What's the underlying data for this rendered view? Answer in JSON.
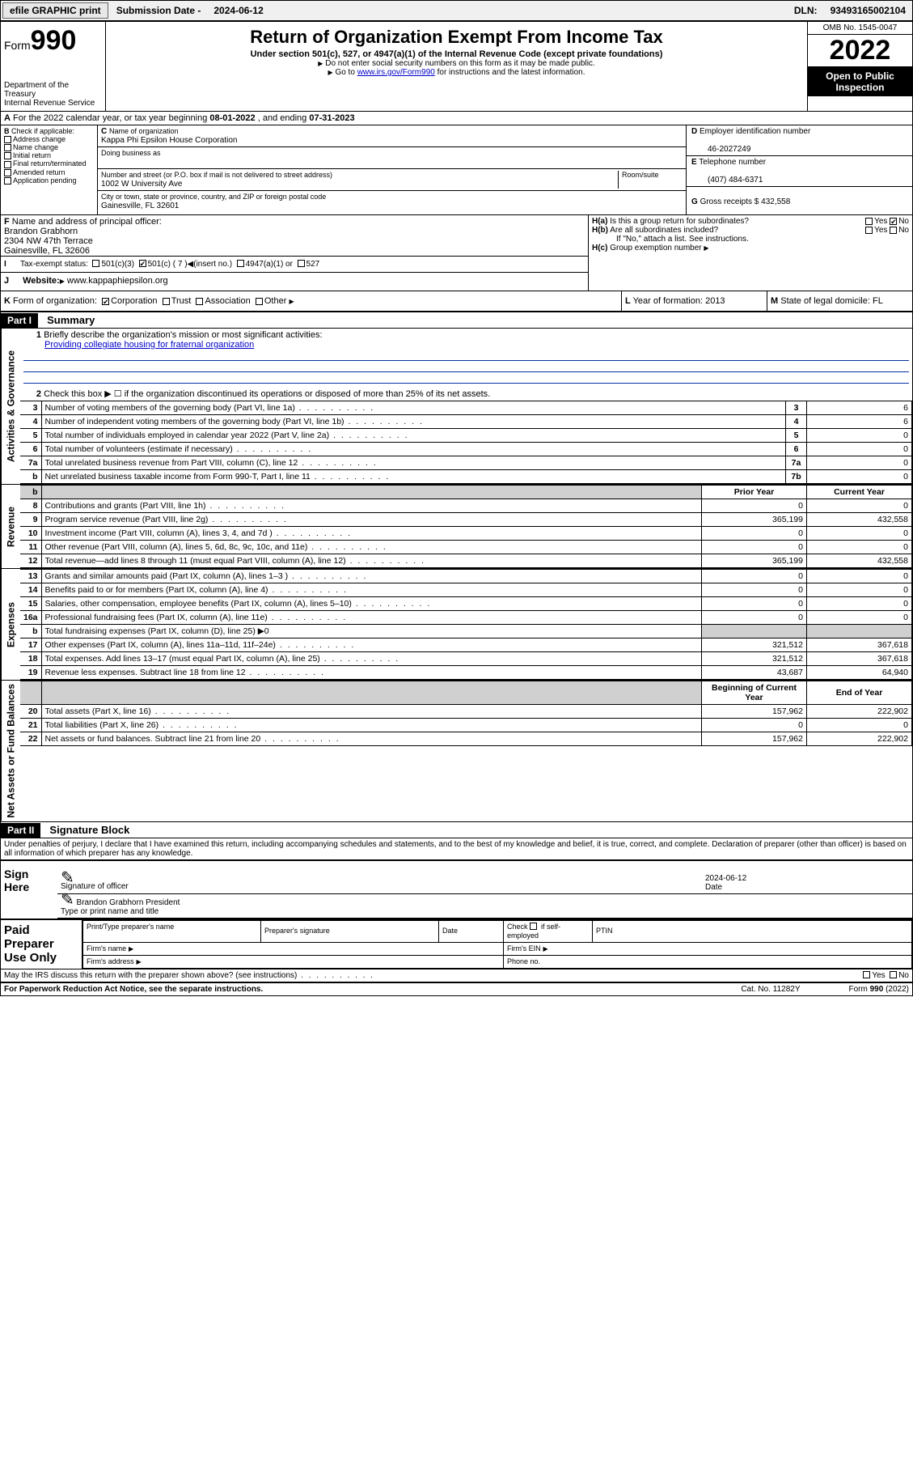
{
  "topbar": {
    "efile": "efile GRAPHIC print",
    "subdate_label": "Submission Date - ",
    "subdate": "2024-06-12",
    "dln_label": "DLN: ",
    "dln": "93493165002104"
  },
  "header": {
    "form_word": "Form",
    "form_no": "990",
    "dept1": "Department of the Treasury",
    "dept2": "Internal Revenue Service",
    "title": "Return of Organization Exempt From Income Tax",
    "sub": "Under section 501(c), 527, or 4947(a)(1) of the Internal Revenue Code (except private foundations)",
    "line1": "Do not enter social security numbers on this form as it may be made public.",
    "line2a": "Go to ",
    "line2link": "www.irs.gov/Form990",
    "line2b": " for instructions and the latest information.",
    "omb": "OMB No. 1545-0047",
    "year": "2022",
    "open": "Open to Public Inspection"
  },
  "A": {
    "label": "A",
    "text1": "For the 2022 calendar year, or tax year beginning ",
    "begin": "08-01-2022",
    "text2": " , and ending ",
    "end": "07-31-2023"
  },
  "B": {
    "label": "B",
    "check_if": "Check if applicable:",
    "opts": [
      "Address change",
      "Name change",
      "Initial return",
      "Final return/terminated",
      "Amended return",
      "Application pending"
    ]
  },
  "C": {
    "label": "C",
    "name_lbl": "Name of organization",
    "name": "Kappa Phi Epsilon House Corporation",
    "dba_lbl": "Doing business as",
    "dba": "",
    "street_lbl": "Number and street (or P.O. box if mail is not delivered to street address)",
    "room_lbl": "Room/suite",
    "street": "1002 W University Ave",
    "city_lbl": "City or town, state or province, country, and ZIP or foreign postal code",
    "city": "Gainesville, FL  32601"
  },
  "D": {
    "label": "D",
    "lbl": "Employer identification number",
    "val": "46-2027249"
  },
  "E": {
    "label": "E",
    "lbl": "Telephone number",
    "val": "(407) 484-6371"
  },
  "G": {
    "label": "G",
    "lbl": "Gross receipts $",
    "val": "432,558"
  },
  "F": {
    "label": "F",
    "lbl": "Name and address of principal officer:",
    "name": "Brandon Grabhorn",
    "addr1": "2304 NW 47th Terrace",
    "addr2": "Gainesville, FL  32606"
  },
  "H": {
    "a_lbl": "H(a)",
    "a_txt": "Is this a group return for subordinates?",
    "a_yes": "Yes",
    "a_no": "No",
    "b_lbl": "H(b)",
    "b_txt": "Are all subordinates included?",
    "b_note": "If \"No,\" attach a list. See instructions.",
    "c_lbl": "H(c)",
    "c_txt": "Group exemption number"
  },
  "I": {
    "label": "I",
    "lbl": "Tax-exempt status:",
    "o1": "501(c)(3)",
    "o2": "501(c) ( 7 )",
    "o2b": "(insert no.)",
    "o3": "4947(a)(1) or",
    "o4": "527"
  },
  "J": {
    "label": "J",
    "lbl": "Website:",
    "val": "www.kappaphiepsilon.org"
  },
  "K": {
    "label": "K",
    "lbl": "Form of organization:",
    "o1": "Corporation",
    "o2": "Trust",
    "o3": "Association",
    "o4": "Other"
  },
  "L": {
    "label": "L",
    "lbl": "Year of formation:",
    "val": "2013"
  },
  "M": {
    "label": "M",
    "lbl": "State of legal domicile:",
    "val": "FL"
  },
  "part1": {
    "label": "Part I",
    "title": "Summary",
    "l1": "Briefly describe the organization's mission or most significant activities:",
    "l1val": "Providing collegiate housing for fraternal organization",
    "l2": "Check this box ▶ ☐  if the organization discontinued its operations or disposed of more than 25% of its net assets.",
    "rows_gov": [
      {
        "n": "3",
        "d": "Number of voting members of the governing body (Part VI, line 1a)",
        "k": "3",
        "v": "6"
      },
      {
        "n": "4",
        "d": "Number of independent voting members of the governing body (Part VI, line 1b)",
        "k": "4",
        "v": "6"
      },
      {
        "n": "5",
        "d": "Total number of individuals employed in calendar year 2022 (Part V, line 2a)",
        "k": "5",
        "v": "0"
      },
      {
        "n": "6",
        "d": "Total number of volunteers (estimate if necessary)",
        "k": "6",
        "v": "0"
      },
      {
        "n": "7a",
        "d": "Total unrelated business revenue from Part VIII, column (C), line 12",
        "k": "7a",
        "v": "0"
      },
      {
        "n": "b",
        "d": "Net unrelated business taxable income from Form 990-T, Part I, line 11",
        "k": "7b",
        "v": "0"
      }
    ],
    "prior_hdr": "Prior Year",
    "curr_hdr": "Current Year",
    "rows_rev": [
      {
        "n": "8",
        "d": "Contributions and grants (Part VIII, line 1h)",
        "p": "0",
        "c": "0"
      },
      {
        "n": "9",
        "d": "Program service revenue (Part VIII, line 2g)",
        "p": "365,199",
        "c": "432,558"
      },
      {
        "n": "10",
        "d": "Investment income (Part VIII, column (A), lines 3, 4, and 7d )",
        "p": "0",
        "c": "0"
      },
      {
        "n": "11",
        "d": "Other revenue (Part VIII, column (A), lines 5, 6d, 8c, 9c, 10c, and 11e)",
        "p": "0",
        "c": "0"
      },
      {
        "n": "12",
        "d": "Total revenue—add lines 8 through 11 (must equal Part VIII, column (A), line 12)",
        "p": "365,199",
        "c": "432,558"
      }
    ],
    "rows_exp": [
      {
        "n": "13",
        "d": "Grants and similar amounts paid (Part IX, column (A), lines 1–3 )",
        "p": "0",
        "c": "0"
      },
      {
        "n": "14",
        "d": "Benefits paid to or for members (Part IX, column (A), line 4)",
        "p": "0",
        "c": "0"
      },
      {
        "n": "15",
        "d": "Salaries, other compensation, employee benefits (Part IX, column (A), lines 5–10)",
        "p": "0",
        "c": "0"
      },
      {
        "n": "16a",
        "d": "Professional fundraising fees (Part IX, column (A), line 11e)",
        "p": "0",
        "c": "0"
      },
      {
        "n": "b",
        "d": "Total fundraising expenses (Part IX, column (D), line 25) ▶0",
        "shade": true
      },
      {
        "n": "17",
        "d": "Other expenses (Part IX, column (A), lines 11a–11d, 11f–24e)",
        "p": "321,512",
        "c": "367,618"
      },
      {
        "n": "18",
        "d": "Total expenses. Add lines 13–17 (must equal Part IX, column (A), line 25)",
        "p": "321,512",
        "c": "367,618"
      },
      {
        "n": "19",
        "d": "Revenue less expenses. Subtract line 18 from line 12",
        "p": "43,687",
        "c": "64,940"
      }
    ],
    "beg_hdr": "Beginning of Current Year",
    "end_hdr": "End of Year",
    "rows_net": [
      {
        "n": "20",
        "d": "Total assets (Part X, line 16)",
        "p": "157,962",
        "c": "222,902"
      },
      {
        "n": "21",
        "d": "Total liabilities (Part X, line 26)",
        "p": "0",
        "c": "0"
      },
      {
        "n": "22",
        "d": "Net assets or fund balances. Subtract line 21 from line 20",
        "p": "157,962",
        "c": "222,902"
      }
    ],
    "side_gov": "Activities & Governance",
    "side_rev": "Revenue",
    "side_exp": "Expenses",
    "side_net": "Net Assets or Fund Balances"
  },
  "part2": {
    "label": "Part II",
    "title": "Signature Block",
    "decl": "Under penalties of perjury, I declare that I have examined this return, including accompanying schedules and statements, and to the best of my knowledge and belief, it is true, correct, and complete. Declaration of preparer (other than officer) is based on all information of which preparer has any knowledge."
  },
  "sign": {
    "here": "Sign Here",
    "sig_lbl": "Signature of officer",
    "date_lbl": "Date",
    "date": "2024-06-12",
    "name": "Brandon Grabhorn President",
    "name_lbl": "Type or print name and title"
  },
  "paid": {
    "title": "Paid Preparer Use Only",
    "h1": "Print/Type preparer's name",
    "h2": "Preparer's signature",
    "h3": "Date",
    "h4a": "Check",
    "h4b": "if self-employed",
    "h5": "PTIN",
    "r2a": "Firm's name",
    "r2b": "Firm's EIN",
    "r3a": "Firm's address",
    "r3b": "Phone no."
  },
  "footer": {
    "q": "May the IRS discuss this return with the preparer shown above? (see instructions)",
    "yes": "Yes",
    "no": "No",
    "pra": "For Paperwork Reduction Act Notice, see the separate instructions.",
    "cat": "Cat. No. 11282Y",
    "form": "Form 990 (2022)"
  }
}
